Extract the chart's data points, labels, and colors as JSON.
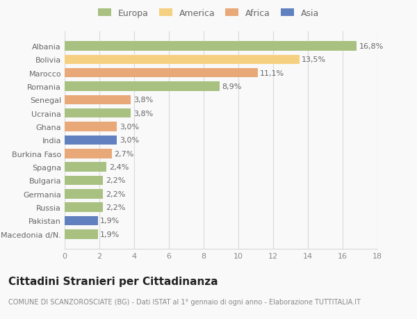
{
  "categories": [
    "Albania",
    "Bolivia",
    "Marocco",
    "Romania",
    "Senegal",
    "Ucraina",
    "Ghana",
    "India",
    "Burkina Faso",
    "Spagna",
    "Bulgaria",
    "Germania",
    "Russia",
    "Pakistan",
    "Macedonia d/N."
  ],
  "values": [
    16.8,
    13.5,
    11.1,
    8.9,
    3.8,
    3.8,
    3.0,
    3.0,
    2.7,
    2.4,
    2.2,
    2.2,
    2.2,
    1.9,
    1.9
  ],
  "labels": [
    "16,8%",
    "13,5%",
    "11,1%",
    "8,9%",
    "3,8%",
    "3,8%",
    "3,0%",
    "3,0%",
    "2,7%",
    "2,4%",
    "2,2%",
    "2,2%",
    "2,2%",
    "1,9%",
    "1,9%"
  ],
  "bar_colors": [
    "#a8c080",
    "#f5d080",
    "#e8a878",
    "#a8c080",
    "#e8a878",
    "#a8c080",
    "#e8a878",
    "#6080c0",
    "#e8a878",
    "#a8c080",
    "#a8c080",
    "#a8c080",
    "#a8c080",
    "#6080c0",
    "#a8c080"
  ],
  "legend_labels": [
    "Europa",
    "America",
    "Africa",
    "Asia"
  ],
  "legend_colors": [
    "#a8c080",
    "#f5d080",
    "#e8a878",
    "#6080c0"
  ],
  "title": "Cittadini Stranieri per Cittadinanza",
  "subtitle": "COMUNE DI SCANZOROSCIATE (BG) - Dati ISTAT al 1° gennaio di ogni anno - Elaborazione TUTTITALIA.IT",
  "xlim": [
    0,
    18
  ],
  "xticks": [
    0,
    2,
    4,
    6,
    8,
    10,
    12,
    14,
    16,
    18
  ],
  "background_color": "#f9f9f9",
  "grid_color": "#d8d8d8",
  "bar_label_fontsize": 8,
  "ytick_fontsize": 8,
  "xtick_fontsize": 8,
  "legend_fontsize": 9,
  "title_fontsize": 11,
  "subtitle_fontsize": 7
}
